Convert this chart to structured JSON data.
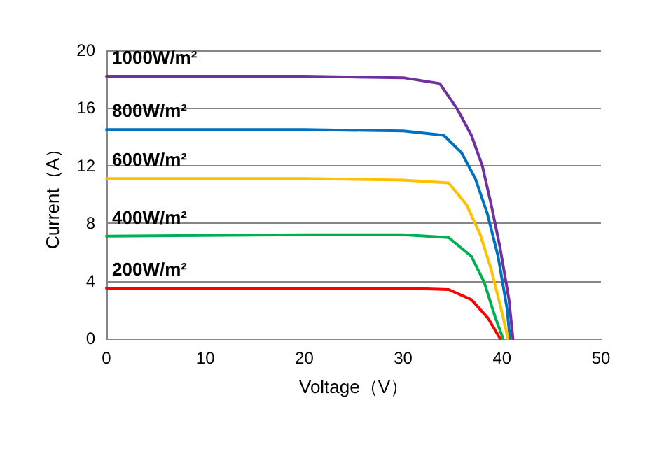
{
  "chart_data": {
    "type": "line",
    "xlabel": "Voltage（V）",
    "ylabel": "Current（A）",
    "xlim": [
      0,
      50
    ],
    "xticks": [
      0,
      10,
      20,
      30,
      40,
      50
    ],
    "ylim": [
      0,
      20
    ],
    "yticks": [
      0,
      4,
      8,
      12,
      16,
      20
    ],
    "grid": "y",
    "legend": false,
    "marker": "none",
    "line_style": "solid",
    "series": [
      {
        "name": "1000W/m²",
        "color": "#7030a0",
        "x": [
          0,
          20,
          30,
          33.7,
          35.5,
          36.9,
          38.0,
          38.9,
          39.8,
          40.7,
          41.1
        ],
        "values": [
          18.2,
          18.2,
          18.1,
          17.7,
          15.9,
          14.1,
          12.0,
          9.3,
          6.3,
          2.7,
          0
        ]
      },
      {
        "name": "800W/m²",
        "color": "#0070c0",
        "x": [
          0,
          20,
          30,
          34.1,
          35.9,
          37.3,
          38.5,
          39.6,
          40.5,
          40.8
        ],
        "values": [
          14.5,
          14.5,
          14.4,
          14.1,
          12.9,
          11.1,
          8.7,
          5.7,
          2.1,
          0
        ]
      },
      {
        "name": "600W/m²",
        "color": "#ffc000",
        "x": [
          0,
          20,
          30,
          34.6,
          36.4,
          37.8,
          38.9,
          40.0,
          40.6
        ],
        "values": [
          11.1,
          11.1,
          11.0,
          10.8,
          9.3,
          7.2,
          4.8,
          1.8,
          0
        ]
      },
      {
        "name": "400W/m²",
        "color": "#00b050",
        "x": [
          0,
          20,
          30,
          34.6,
          36.9,
          38.2,
          39.3,
          40.1
        ],
        "values": [
          7.1,
          7.2,
          7.2,
          7.0,
          5.7,
          3.9,
          1.5,
          0
        ]
      },
      {
        "name": "200W/m²",
        "color": "#ff0000",
        "x": [
          0,
          20,
          30,
          34.6,
          36.9,
          38.6,
          39.8
        ],
        "values": [
          3.5,
          3.5,
          3.5,
          3.4,
          2.7,
          1.4,
          0
        ]
      }
    ]
  }
}
